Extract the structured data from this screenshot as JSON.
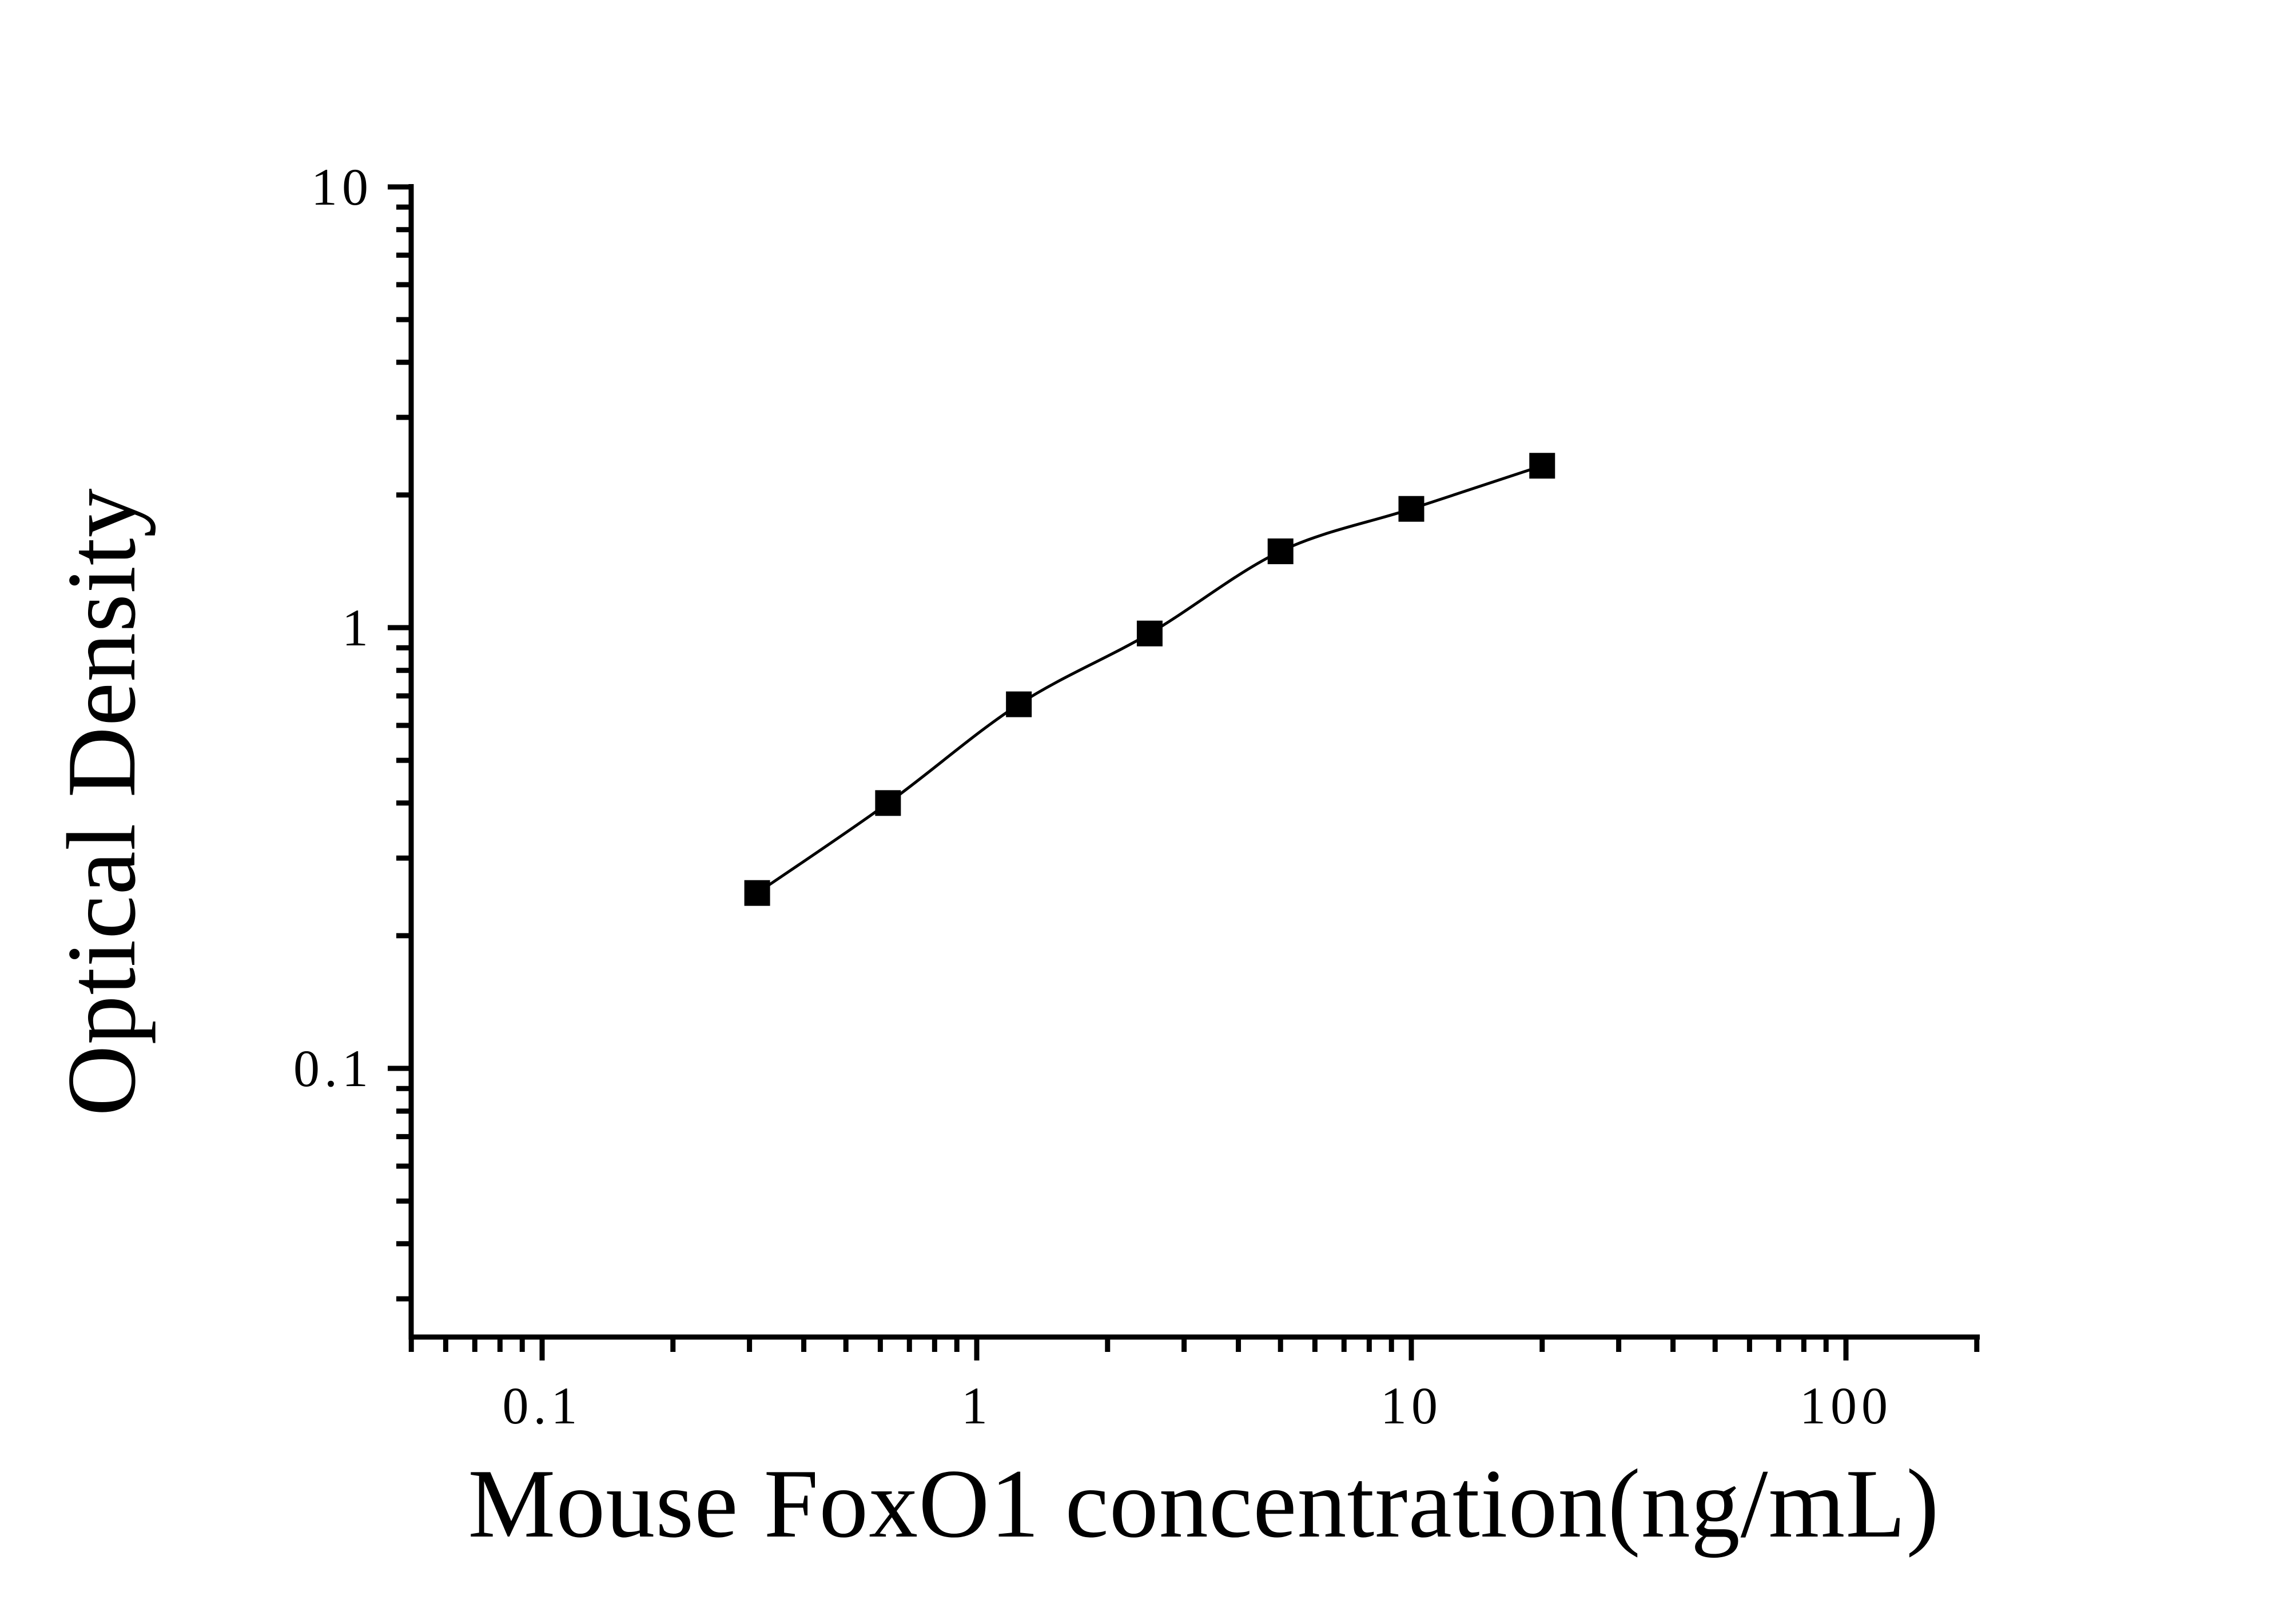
{
  "figure": {
    "background_color": "#ffffff",
    "ink_color": "#000000"
  },
  "chart_data": {
    "type": "line",
    "subtype": "elisa-standard-curve-scatter-with-fit-line",
    "title": "",
    "xlabel": "Mouse FoxO1 concentration(ng/mL)",
    "ylabel": "Optical Density",
    "x_scale": "log",
    "y_scale": "log",
    "x_range": [
      0.05,
      200
    ],
    "y_range": [
      0.025,
      10
    ],
    "grid": "off",
    "legend": "none",
    "x_tick_labels": [
      {
        "value": 0.1,
        "label": "0.1"
      },
      {
        "value": 1,
        "label": "1"
      },
      {
        "value": 10,
        "label": "10"
      },
      {
        "value": 100,
        "label": "100"
      }
    ],
    "y_tick_labels": [
      {
        "value": 0.1,
        "label": "0.1"
      },
      {
        "value": 1,
        "label": "1"
      },
      {
        "value": 10,
        "label": "10"
      }
    ],
    "series": [
      {
        "name": "standard curve",
        "marker": "filled-square",
        "marker_color": "#000000",
        "line_color": "#000000",
        "x": [
          0.3125,
          0.625,
          1.25,
          2.5,
          5,
          10,
          20
        ],
        "y": [
          0.25,
          0.4,
          0.67,
          0.97,
          1.49,
          1.86,
          2.33
        ]
      }
    ]
  }
}
